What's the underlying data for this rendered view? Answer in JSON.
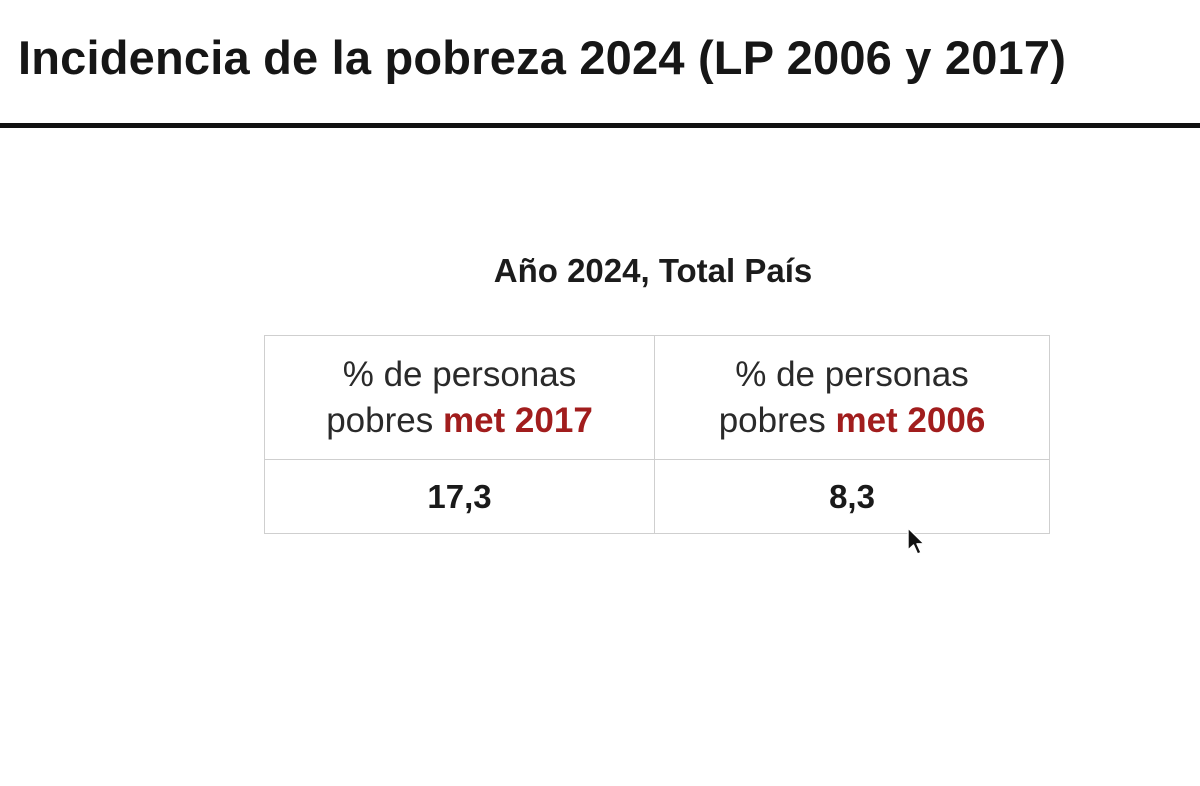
{
  "slide": {
    "title": "Incidencia de la pobreza 2024 (LP 2006 y 2017)",
    "subtitle": "Año 2024, Total País"
  },
  "table": {
    "columns": [
      {
        "header_line1": "% de personas",
        "header_line2_prefix": "pobres ",
        "header_highlight": "met 2017",
        "value": "17,3"
      },
      {
        "header_line1": "% de personas",
        "header_line2_prefix": "pobres ",
        "header_highlight": "met 2006",
        "value": "8,3"
      }
    ]
  },
  "colors": {
    "accent": "#a11d1d",
    "rule": "#111111",
    "table_border": "#cfcfcf"
  },
  "icons": {
    "cursor": "mouse-pointer-icon"
  }
}
